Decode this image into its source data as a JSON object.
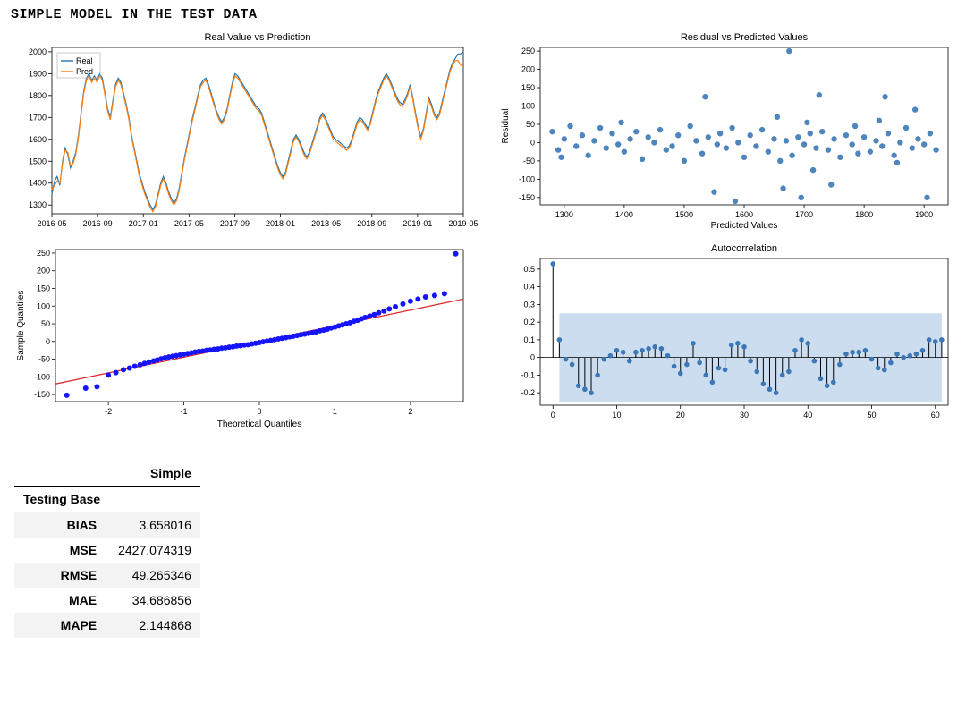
{
  "page_title": "SIMPLE MODEL IN THE TEST DATA",
  "colors": {
    "real_line": "#1f77b4",
    "pred_line": "#ff7f0e",
    "scatter_point": "#3b78b5",
    "qq_point": "#1414ff",
    "qq_line": "#e02020",
    "acf_band": "#aac7e4",
    "acf_marker": "#3b78b5",
    "border": "#000000",
    "background": "#ffffff"
  },
  "chart_ts": {
    "title": "Real Value vs Prediction",
    "legend": [
      "Real",
      "Pred"
    ],
    "yticks": [
      1300,
      1400,
      1500,
      1600,
      1700,
      1800,
      1900,
      2000
    ],
    "xticks": [
      "2016-05",
      "2016-09",
      "2017-01",
      "2017-05",
      "2017-09",
      "2018-01",
      "2018-05",
      "2018-09",
      "2019-01",
      "2019-05"
    ],
    "ylim": [
      1260,
      2020
    ],
    "x_n": 156,
    "real": [
      1350,
      1410,
      1430,
      1390,
      1500,
      1560,
      1530,
      1470,
      1500,
      1540,
      1620,
      1720,
      1820,
      1880,
      1900,
      1870,
      1890,
      1870,
      1900,
      1880,
      1810,
      1740,
      1700,
      1780,
      1850,
      1880,
      1860,
      1810,
      1760,
      1700,
      1620,
      1560,
      1500,
      1440,
      1400,
      1360,
      1330,
      1300,
      1280,
      1300,
      1350,
      1400,
      1430,
      1400,
      1360,
      1330,
      1310,
      1330,
      1380,
      1450,
      1520,
      1580,
      1640,
      1700,
      1750,
      1800,
      1850,
      1870,
      1880,
      1850,
      1810,
      1770,
      1730,
      1700,
      1680,
      1700,
      1740,
      1800,
      1860,
      1900,
      1890,
      1870,
      1850,
      1830,
      1810,
      1790,
      1770,
      1750,
      1740,
      1720,
      1680,
      1640,
      1600,
      1560,
      1520,
      1480,
      1450,
      1430,
      1450,
      1500,
      1550,
      1600,
      1620,
      1600,
      1570,
      1540,
      1520,
      1540,
      1580,
      1620,
      1660,
      1700,
      1720,
      1700,
      1670,
      1640,
      1610,
      1600,
      1590,
      1580,
      1570,
      1560,
      1570,
      1600,
      1640,
      1680,
      1700,
      1690,
      1670,
      1650,
      1680,
      1730,
      1780,
      1820,
      1850,
      1880,
      1900,
      1880,
      1850,
      1820,
      1790,
      1770,
      1760,
      1780,
      1810,
      1850,
      1790,
      1720,
      1660,
      1610,
      1650,
      1720,
      1790,
      1760,
      1720,
      1700,
      1720,
      1770,
      1820,
      1870,
      1920,
      1950,
      1970,
      1990,
      1990,
      2000
    ],
    "pred": [
      1370,
      1390,
      1410,
      1400,
      1490,
      1550,
      1540,
      1480,
      1490,
      1530,
      1610,
      1710,
      1810,
      1870,
      1890,
      1860,
      1880,
      1860,
      1890,
      1870,
      1800,
      1730,
      1690,
      1770,
      1840,
      1870,
      1850,
      1800,
      1750,
      1690,
      1610,
      1550,
      1490,
      1430,
      1390,
      1350,
      1320,
      1290,
      1270,
      1290,
      1340,
      1390,
      1420,
      1390,
      1350,
      1320,
      1300,
      1320,
      1370,
      1440,
      1510,
      1570,
      1630,
      1690,
      1740,
      1790,
      1840,
      1860,
      1870,
      1840,
      1800,
      1760,
      1720,
      1690,
      1670,
      1690,
      1730,
      1790,
      1850,
      1890,
      1880,
      1860,
      1840,
      1820,
      1800,
      1780,
      1760,
      1740,
      1730,
      1710,
      1670,
      1630,
      1590,
      1550,
      1510,
      1470,
      1440,
      1420,
      1440,
      1490,
      1540,
      1590,
      1610,
      1590,
      1560,
      1530,
      1510,
      1530,
      1570,
      1610,
      1650,
      1690,
      1710,
      1690,
      1660,
      1630,
      1600,
      1590,
      1580,
      1570,
      1560,
      1550,
      1560,
      1590,
      1630,
      1670,
      1690,
      1680,
      1660,
      1640,
      1670,
      1720,
      1770,
      1810,
      1840,
      1870,
      1890,
      1870,
      1840,
      1810,
      1780,
      1760,
      1750,
      1770,
      1800,
      1840,
      1780,
      1710,
      1650,
      1600,
      1640,
      1710,
      1780,
      1750,
      1710,
      1690,
      1710,
      1760,
      1810,
      1860,
      1910,
      1940,
      1960,
      1960,
      1940,
      1930
    ]
  },
  "chart_residual": {
    "title": "Residual vs Predicted Values",
    "ylabel": "Residual",
    "xlabel": "Predicted Values",
    "yticks": [
      -150,
      -100,
      -50,
      0,
      50,
      100,
      150,
      200,
      250
    ],
    "xticks": [
      1300,
      1400,
      1500,
      1600,
      1700,
      1800,
      1900
    ],
    "ylim": [
      -170,
      260
    ],
    "xlim": [
      1260,
      1940
    ],
    "points": [
      [
        1280,
        30
      ],
      [
        1290,
        -20
      ],
      [
        1295,
        -40
      ],
      [
        1300,
        10
      ],
      [
        1310,
        45
      ],
      [
        1320,
        -10
      ],
      [
        1330,
        20
      ],
      [
        1340,
        -35
      ],
      [
        1350,
        5
      ],
      [
        1360,
        40
      ],
      [
        1370,
        -15
      ],
      [
        1380,
        25
      ],
      [
        1390,
        -5
      ],
      [
        1395,
        55
      ],
      [
        1400,
        -25
      ],
      [
        1410,
        10
      ],
      [
        1420,
        30
      ],
      [
        1430,
        -45
      ],
      [
        1440,
        15
      ],
      [
        1450,
        0
      ],
      [
        1460,
        35
      ],
      [
        1470,
        -20
      ],
      [
        1480,
        -10
      ],
      [
        1490,
        20
      ],
      [
        1500,
        -50
      ],
      [
        1510,
        45
      ],
      [
        1520,
        5
      ],
      [
        1530,
        -30
      ],
      [
        1535,
        125
      ],
      [
        1540,
        15
      ],
      [
        1550,
        -135
      ],
      [
        1555,
        -5
      ],
      [
        1560,
        25
      ],
      [
        1570,
        -15
      ],
      [
        1580,
        40
      ],
      [
        1585,
        -160
      ],
      [
        1590,
        0
      ],
      [
        1600,
        -40
      ],
      [
        1610,
        20
      ],
      [
        1620,
        -10
      ],
      [
        1630,
        35
      ],
      [
        1640,
        -25
      ],
      [
        1650,
        10
      ],
      [
        1655,
        70
      ],
      [
        1660,
        -50
      ],
      [
        1665,
        -125
      ],
      [
        1670,
        5
      ],
      [
        1675,
        250
      ],
      [
        1680,
        -35
      ],
      [
        1690,
        15
      ],
      [
        1695,
        -150
      ],
      [
        1700,
        -5
      ],
      [
        1705,
        55
      ],
      [
        1710,
        25
      ],
      [
        1715,
        -75
      ],
      [
        1720,
        -15
      ],
      [
        1725,
        130
      ],
      [
        1730,
        30
      ],
      [
        1740,
        -20
      ],
      [
        1745,
        -115
      ],
      [
        1750,
        10
      ],
      [
        1760,
        -40
      ],
      [
        1770,
        20
      ],
      [
        1780,
        -5
      ],
      [
        1785,
        45
      ],
      [
        1790,
        -30
      ],
      [
        1800,
        15
      ],
      [
        1810,
        -25
      ],
      [
        1820,
        5
      ],
      [
        1825,
        60
      ],
      [
        1830,
        -10
      ],
      [
        1835,
        125
      ],
      [
        1840,
        25
      ],
      [
        1850,
        -35
      ],
      [
        1855,
        -55
      ],
      [
        1860,
        0
      ],
      [
        1870,
        40
      ],
      [
        1880,
        -15
      ],
      [
        1885,
        90
      ],
      [
        1890,
        10
      ],
      [
        1900,
        -5
      ],
      [
        1905,
        -150
      ],
      [
        1910,
        25
      ],
      [
        1920,
        -20
      ]
    ]
  },
  "chart_qq": {
    "ylabel": "Sample Quantiles",
    "xlabel": "Theoretical Quantiles",
    "yticks": [
      -150,
      -100,
      -50,
      0,
      50,
      100,
      150,
      200,
      250
    ],
    "xticks": [
      -2,
      -1,
      0,
      1,
      2
    ],
    "ylim": [
      -170,
      260
    ],
    "xlim": [
      -2.7,
      2.7
    ],
    "line": {
      "x1": -2.7,
      "y1": -120,
      "x2": 2.7,
      "y2": 120
    },
    "points": [
      [
        -2.55,
        -152
      ],
      [
        -2.3,
        -132
      ],
      [
        -2.15,
        -128
      ],
      [
        -2.0,
        -95
      ],
      [
        -1.9,
        -88
      ],
      [
        -1.8,
        -80
      ],
      [
        -1.72,
        -75
      ],
      [
        -1.65,
        -70
      ],
      [
        -1.58,
        -66
      ],
      [
        -1.52,
        -62
      ],
      [
        -1.46,
        -58
      ],
      [
        -1.4,
        -55
      ],
      [
        -1.35,
        -52
      ],
      [
        -1.3,
        -49
      ],
      [
        -1.25,
        -46
      ],
      [
        -1.2,
        -44
      ],
      [
        -1.15,
        -42
      ],
      [
        -1.1,
        -40
      ],
      [
        -1.05,
        -38
      ],
      [
        -1.0,
        -36
      ],
      [
        -0.95,
        -34
      ],
      [
        -0.9,
        -32
      ],
      [
        -0.85,
        -30
      ],
      [
        -0.8,
        -28
      ],
      [
        -0.75,
        -27
      ],
      [
        -0.7,
        -25
      ],
      [
        -0.65,
        -24
      ],
      [
        -0.6,
        -22
      ],
      [
        -0.55,
        -21
      ],
      [
        -0.5,
        -19
      ],
      [
        -0.45,
        -18
      ],
      [
        -0.4,
        -16
      ],
      [
        -0.35,
        -15
      ],
      [
        -0.3,
        -13
      ],
      [
        -0.25,
        -12
      ],
      [
        -0.2,
        -10
      ],
      [
        -0.15,
        -9
      ],
      [
        -0.1,
        -7
      ],
      [
        -0.05,
        -5
      ],
      [
        0.0,
        -3
      ],
      [
        0.05,
        -1
      ],
      [
        0.1,
        1
      ],
      [
        0.15,
        3
      ],
      [
        0.2,
        5
      ],
      [
        0.25,
        7
      ],
      [
        0.3,
        9
      ],
      [
        0.35,
        11
      ],
      [
        0.4,
        13
      ],
      [
        0.45,
        15
      ],
      [
        0.5,
        17
      ],
      [
        0.55,
        19
      ],
      [
        0.6,
        21
      ],
      [
        0.65,
        23
      ],
      [
        0.7,
        25
      ],
      [
        0.75,
        27
      ],
      [
        0.8,
        30
      ],
      [
        0.85,
        32
      ],
      [
        0.9,
        35
      ],
      [
        0.95,
        38
      ],
      [
        1.0,
        41
      ],
      [
        1.05,
        44
      ],
      [
        1.1,
        47
      ],
      [
        1.15,
        50
      ],
      [
        1.2,
        53
      ],
      [
        1.25,
        57
      ],
      [
        1.3,
        60
      ],
      [
        1.35,
        64
      ],
      [
        1.4,
        68
      ],
      [
        1.46,
        72
      ],
      [
        1.52,
        76
      ],
      [
        1.58,
        81
      ],
      [
        1.65,
        86
      ],
      [
        1.72,
        92
      ],
      [
        1.8,
        98
      ],
      [
        1.9,
        106
      ],
      [
        2.0,
        114
      ],
      [
        2.1,
        120
      ],
      [
        2.2,
        126
      ],
      [
        2.32,
        130
      ],
      [
        2.45,
        135
      ],
      [
        2.6,
        248
      ]
    ]
  },
  "chart_acf": {
    "title": "Autocorrelation",
    "yticks": [
      -0.2,
      -0.1,
      0,
      0.1,
      0.2,
      0.3,
      0.4,
      0.5
    ],
    "xticks": [
      0,
      10,
      20,
      30,
      40,
      50,
      60
    ],
    "ylim": [
      -0.27,
      0.56
    ],
    "xlim": [
      -2,
      62
    ],
    "band_y": 0.25,
    "band_x": [
      1,
      61
    ],
    "marker_r": 2.8,
    "values": [
      0.53,
      0.1,
      -0.01,
      -0.04,
      -0.16,
      -0.18,
      -0.2,
      -0.1,
      -0.01,
      0.01,
      0.04,
      0.03,
      -0.02,
      0.03,
      0.04,
      0.05,
      0.06,
      0.05,
      0.01,
      -0.05,
      -0.09,
      -0.04,
      0.08,
      -0.03,
      -0.1,
      -0.14,
      -0.06,
      -0.07,
      0.07,
      0.08,
      0.06,
      -0.02,
      -0.08,
      -0.15,
      -0.18,
      -0.2,
      -0.1,
      -0.08,
      0.04,
      0.1,
      0.08,
      -0.02,
      -0.12,
      -0.16,
      -0.14,
      -0.04,
      0.02,
      0.03,
      0.03,
      0.04,
      -0.01,
      -0.06,
      -0.07,
      -0.03,
      0.02,
      0.0,
      0.01,
      0.02,
      0.04,
      0.1,
      0.09,
      0.1
    ]
  },
  "metrics": {
    "col_header": "Simple",
    "row_header": "Testing Base",
    "rows": [
      {
        "label": "BIAS",
        "value": "3.658016"
      },
      {
        "label": "MSE",
        "value": "2427.074319"
      },
      {
        "label": "RMSE",
        "value": "49.265346"
      },
      {
        "label": "MAE",
        "value": "34.686856"
      },
      {
        "label": "MAPE",
        "value": "2.144868"
      }
    ]
  }
}
